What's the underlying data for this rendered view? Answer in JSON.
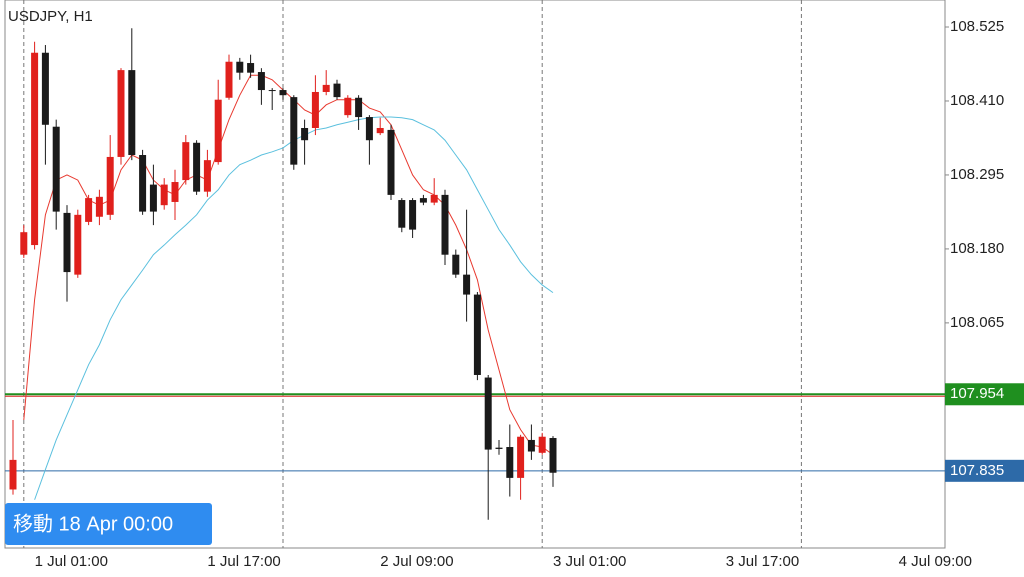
{
  "chart_data": {
    "type": "candlestick",
    "title": "USDJPY, H1",
    "button": "移動 18 Apr 00:00",
    "categories": [
      null,
      null,
      "1 Jul 01:00",
      null,
      null,
      null,
      null,
      null,
      null,
      null,
      null,
      null,
      null,
      null,
      null,
      null,
      null,
      null,
      "1 Jul 17:00",
      null,
      null,
      null,
      null,
      null,
      null,
      null,
      null,
      null,
      null,
      null,
      null,
      null,
      null,
      null,
      "2 Jul 09:00",
      null,
      null,
      null,
      null,
      null,
      null,
      null,
      null,
      null,
      null,
      null,
      null,
      null,
      null,
      null,
      "3 Jul 01:00",
      null,
      null,
      null,
      null,
      null,
      null,
      null,
      null,
      null,
      null,
      null,
      null,
      null,
      null,
      null,
      "3 Jul 17:00",
      null,
      null,
      null,
      null,
      null,
      null,
      null,
      null,
      null,
      null,
      null,
      null,
      null,
      null,
      null,
      "4 Jul 09:00",
      null,
      null,
      null,
      null
    ],
    "open": [
      107.806,
      108.171,
      108.186,
      108.485,
      108.37,
      108.236,
      108.14,
      108.222,
      108.23,
      108.233,
      108.323,
      108.458,
      108.326,
      108.28,
      108.248,
      108.253,
      108.287,
      108.345,
      108.269,
      108.315,
      108.415,
      108.471,
      108.469,
      108.455,
      108.427,
      108.427,
      108.416,
      108.368,
      108.368,
      108.424,
      108.437,
      108.388,
      108.415,
      108.385,
      108.36,
      108.365,
      108.256,
      108.256,
      108.259,
      108.252,
      108.264,
      108.171,
      108.14,
      108.109,
      107.98,
      107.871,
      107.872,
      107.824,
      107.883,
      107.863,
      107.886,
      null,
      null,
      null,
      null,
      null,
      null,
      null,
      null,
      null,
      null,
      null,
      null,
      null,
      null,
      null,
      null,
      null,
      null,
      null,
      null,
      null,
      null,
      null,
      null,
      null,
      null,
      null,
      null,
      null,
      null,
      null,
      null,
      null,
      null,
      null,
      null
    ],
    "high": [
      107.914,
      108.217,
      108.502,
      108.497,
      108.381,
      108.248,
      108.241,
      108.264,
      108.272,
      108.357,
      108.461,
      108.523,
      108.334,
      108.311,
      108.29,
      108.303,
      108.357,
      108.349,
      108.334,
      108.443,
      108.482,
      108.477,
      108.482,
      108.461,
      108.43,
      108.43,
      108.419,
      108.381,
      108.45,
      108.458,
      108.443,
      108.419,
      108.419,
      108.388,
      108.384,
      108.373,
      108.259,
      108.259,
      108.264,
      108.29,
      108.272,
      108.179,
      108.241,
      108.113,
      107.984,
      107.883,
      107.907,
      107.891,
      107.907,
      107.894,
      107.889,
      null,
      null,
      null,
      null,
      null,
      null,
      null,
      null,
      null,
      null,
      null,
      null,
      null,
      null,
      null,
      null,
      null,
      null,
      null,
      null,
      null,
      null,
      null,
      null,
      null,
      null,
      null,
      null,
      null,
      null,
      null,
      null,
      null,
      null,
      null,
      null
    ],
    "low": [
      107.798,
      108.166,
      108.179,
      108.311,
      108.21,
      108.098,
      108.135,
      108.217,
      108.217,
      108.225,
      108.311,
      108.318,
      108.233,
      108.217,
      108.241,
      108.225,
      108.28,
      108.264,
      108.261,
      108.311,
      108.412,
      108.443,
      108.446,
      108.404,
      108.396,
      108.412,
      108.303,
      108.311,
      108.357,
      108.419,
      108.412,
      108.384,
      108.365,
      108.311,
      108.357,
      108.256,
      108.206,
      108.197,
      108.248,
      108.248,
      108.155,
      108.135,
      108.067,
      107.976,
      107.759,
      107.86,
      107.795,
      107.79,
      107.852,
      107.86,
      107.81,
      null,
      null,
      null,
      null,
      null,
      null,
      null,
      null,
      null,
      null,
      null,
      null,
      null,
      null,
      null,
      null,
      null,
      null,
      null,
      null,
      null,
      null,
      null,
      null,
      null,
      null,
      null,
      null,
      null,
      null,
      null,
      null,
      null,
      null,
      null,
      null
    ],
    "close": [
      107.852,
      108.206,
      108.485,
      108.373,
      108.238,
      108.144,
      108.233,
      108.259,
      108.261,
      108.323,
      108.458,
      108.326,
      108.238,
      108.238,
      108.28,
      108.284,
      108.346,
      108.269,
      108.318,
      108.412,
      108.471,
      108.454,
      108.454,
      108.427,
      108.426,
      108.419,
      108.311,
      108.349,
      108.424,
      108.435,
      108.416,
      108.415,
      108.385,
      108.349,
      108.368,
      108.264,
      108.213,
      108.21,
      108.252,
      108.264,
      108.171,
      108.14,
      108.109,
      107.984,
      107.868,
      107.869,
      107.824,
      107.888,
      107.865,
      107.888,
      107.832,
      null,
      null,
      null,
      null,
      null,
      null,
      null,
      null,
      null,
      null,
      null,
      null,
      null,
      null,
      null,
      null,
      null,
      null,
      null,
      null,
      null,
      null,
      null,
      null,
      null,
      null,
      null,
      null,
      null,
      null,
      null,
      null,
      null,
      null,
      null,
      null
    ],
    "up_color": "#e0201c",
    "down_color": "#1a1a1a",
    "series": [
      {
        "color": "#e8392f",
        "values": [
          null,
          107.914,
          108.101,
          108.233,
          108.287,
          108.295,
          108.287,
          108.256,
          108.248,
          108.256,
          108.303,
          108.326,
          108.318,
          108.287,
          108.272,
          108.264,
          108.287,
          108.295,
          108.287,
          108.334,
          108.381,
          108.419,
          108.45,
          108.45,
          108.443,
          108.427,
          108.412,
          108.396,
          108.388,
          108.404,
          108.412,
          108.412,
          108.412,
          108.399,
          108.393,
          108.373,
          108.334,
          108.295,
          108.272,
          108.264,
          108.248,
          108.217,
          108.179,
          108.132,
          108.054,
          107.992,
          107.93,
          107.899,
          107.875,
          107.872,
          107.86,
          null,
          null,
          null,
          null,
          null,
          null,
          null,
          null,
          null,
          null,
          null,
          null,
          null,
          null,
          null,
          null,
          null,
          null,
          null,
          null,
          null,
          null,
          null,
          null,
          null,
          null,
          null,
          null,
          null,
          null,
          null,
          null,
          null,
          null,
          null,
          null
        ]
      },
      {
        "color": "#5bc0de",
        "values": [
          null,
          null,
          107.79,
          107.837,
          107.883,
          107.922,
          107.961,
          108.0,
          108.031,
          108.07,
          108.101,
          108.124,
          108.147,
          108.171,
          108.186,
          108.202,
          108.217,
          108.233,
          108.256,
          108.272,
          108.295,
          108.311,
          108.318,
          108.326,
          108.331,
          108.337,
          108.349,
          108.357,
          108.365,
          108.368,
          108.373,
          108.377,
          108.381,
          108.384,
          108.385,
          108.385,
          108.384,
          108.381,
          108.373,
          108.365,
          108.349,
          108.326,
          108.303,
          108.272,
          108.241,
          108.21,
          108.186,
          108.16,
          108.14,
          108.124,
          108.112,
          null,
          null,
          null,
          null,
          null,
          null,
          null,
          null,
          null,
          null,
          null,
          null,
          null,
          null,
          null,
          null,
          null,
          null,
          null,
          null,
          null,
          null,
          null,
          null,
          null,
          null,
          null,
          null,
          null,
          null,
          null,
          null,
          null,
          null,
          null,
          null
        ]
      }
    ],
    "levels": [
      {
        "value": 107.954,
        "color": "#1f8f1f"
      },
      {
        "value": 107.835,
        "color": "#2d6aa8"
      }
    ],
    "ylim": [
      107.715,
      108.567
    ],
    "yticks": [
      108.525,
      {
        "value": 108.41,
        "label": "108.410"
      },
      108.295,
      {
        "value": 108.18,
        "label": "108.180"
      },
      108.065
    ]
  }
}
